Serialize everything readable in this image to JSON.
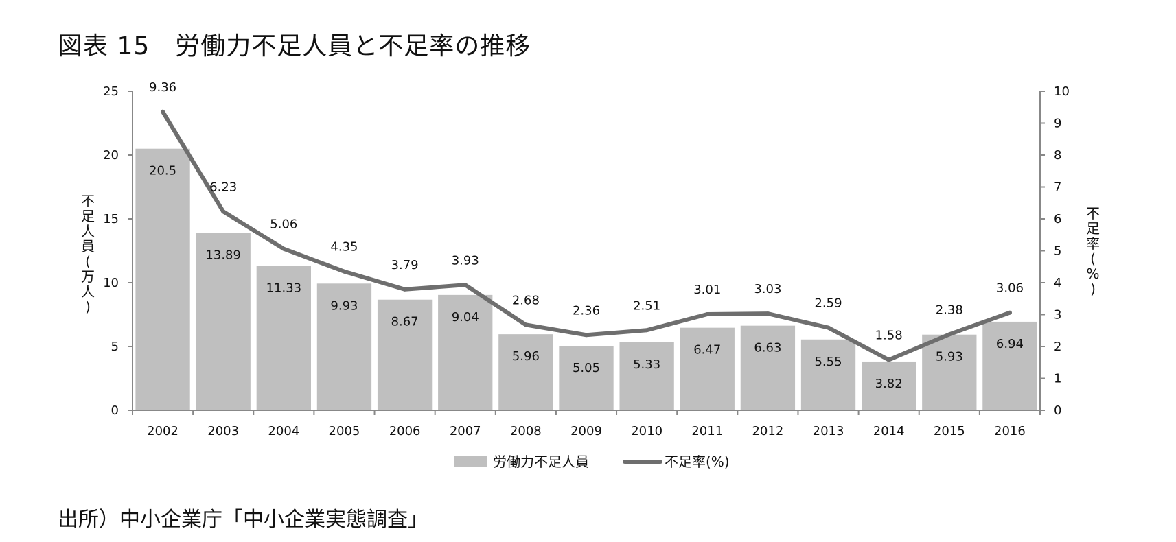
{
  "title": "図表 15　労働力不足人員と不足率の推移",
  "source": "出所）中小企業庁「中小企業実態調査」",
  "chart_data": {
    "type": "bar",
    "categories": [
      "2002",
      "2003",
      "2004",
      "2005",
      "2006",
      "2007",
      "2008",
      "2009",
      "2010",
      "2011",
      "2012",
      "2013",
      "2014",
      "2015",
      "2016"
    ],
    "series": [
      {
        "name": "労働力不足人員",
        "type": "bar",
        "axis": "left",
        "values": [
          20.5,
          13.89,
          11.33,
          9.93,
          8.67,
          9.04,
          5.96,
          5.05,
          5.33,
          6.47,
          6.63,
          5.55,
          3.82,
          5.93,
          6.94
        ],
        "labels": [
          "20.5",
          "13.89",
          "11.33",
          "9.93",
          "8.67",
          "9.04",
          "5.96",
          "5.05",
          "5.33",
          "6.47",
          "6.63",
          "5.55",
          "3.82",
          "5.93",
          "6.94"
        ]
      },
      {
        "name": "不足率(%)",
        "type": "line",
        "axis": "right",
        "values": [
          9.36,
          6.23,
          5.06,
          4.35,
          3.79,
          3.93,
          2.68,
          2.36,
          2.51,
          3.01,
          3.03,
          2.59,
          1.58,
          2.38,
          3.06
        ],
        "labels": [
          "9.36",
          "6.23",
          "5.06",
          "4.35",
          "3.79",
          "3.93",
          "2.68",
          "2.36",
          "2.51",
          "3.01",
          "3.03",
          "2.59",
          "1.58",
          "2.38",
          "3.06"
        ]
      }
    ],
    "ylabel_left": "不足人員(万人)",
    "ylabel_right": "不足率(%)",
    "ylim_left": [
      0,
      25
    ],
    "yticks_left": [
      "0",
      "5",
      "10",
      "15",
      "20",
      "25"
    ],
    "ylim_right": [
      0,
      10
    ],
    "yticks_right": [
      "0",
      "1",
      "2",
      "3",
      "4",
      "5",
      "6",
      "7",
      "8",
      "9",
      "10"
    ],
    "legend_position": "bottom",
    "colors": {
      "bar": "#bfbfbf",
      "line": "#6e6e6e",
      "axis": "#888888"
    }
  }
}
